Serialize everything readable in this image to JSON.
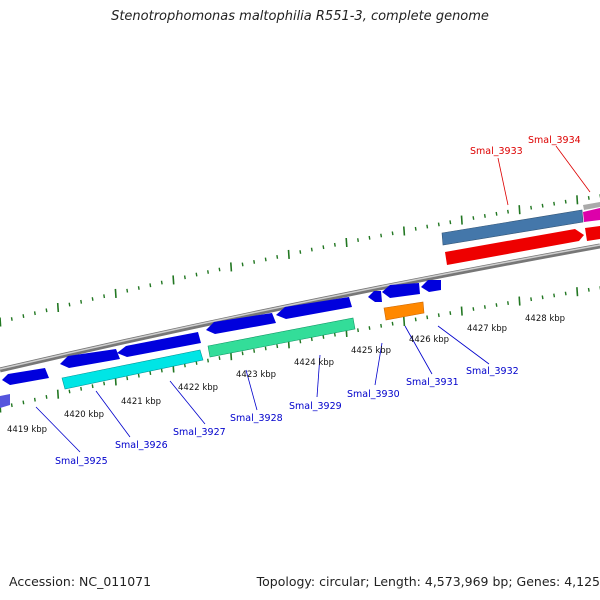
{
  "title": "Stenotrophomonas maltophilia R551-3, complete genome",
  "accession_text": "Accession: NC_011071",
  "stats_text": "Topology: circular; Length: 4,573,969 bp; Genes: 4,125",
  "colors": {
    "label_blue": "#0000cc",
    "label_red": "#dd0000",
    "tick_green": "#227722",
    "backbone": "#888888"
  },
  "scale_labels": [
    {
      "kb": 4419,
      "text": "4419 kbp"
    },
    {
      "kb": 4420,
      "text": "4420 kbp"
    },
    {
      "kb": 4421,
      "text": "4421 kbp"
    },
    {
      "kb": 4422,
      "text": "4422 kbp"
    },
    {
      "kb": 4423,
      "text": "4423 kbp"
    },
    {
      "kb": 4424,
      "text": "4424 kbp"
    },
    {
      "kb": 4425,
      "text": "4425 kbp"
    },
    {
      "kb": 4426,
      "text": "4426 kbp"
    },
    {
      "kb": 4427,
      "text": "4427 kbp"
    },
    {
      "kb": 4428,
      "text": "4428 kbp"
    }
  ],
  "gene_labels": [
    {
      "name": "Smal_3925",
      "color": "blue"
    },
    {
      "name": "Smal_3926",
      "color": "blue"
    },
    {
      "name": "Smal_3927",
      "color": "blue"
    },
    {
      "name": "Smal_3928",
      "color": "blue"
    },
    {
      "name": "Smal_3929",
      "color": "blue"
    },
    {
      "name": "Smal_3930",
      "color": "blue"
    },
    {
      "name": "Smal_3931",
      "color": "blue"
    },
    {
      "name": "Smal_3932",
      "color": "blue"
    },
    {
      "name": "Smal_3933",
      "color": "red"
    },
    {
      "name": "Smal_3934",
      "color": "red"
    }
  ]
}
